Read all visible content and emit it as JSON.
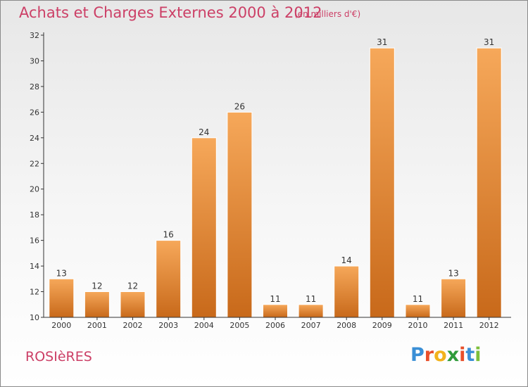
{
  "title": "Achats et Charges Externes 2000 à 2012",
  "subtitle": "(en milliers d'€)",
  "commune": "ROSIèRES",
  "logo_text": "Proxiti",
  "colors": {
    "title": "#cc3f66",
    "bar_top": "#f6a85a",
    "bar_bottom": "#c8691a",
    "axis": "#333333"
  },
  "chart_data": {
    "type": "bar",
    "categories": [
      "2000",
      "2001",
      "2002",
      "2003",
      "2004",
      "2005",
      "2006",
      "2007",
      "2008",
      "2009",
      "2010",
      "2011",
      "2012"
    ],
    "values": [
      13,
      12,
      12,
      16,
      24,
      26,
      11,
      11,
      14,
      31,
      11,
      13,
      31
    ],
    "ylim": [
      10,
      32
    ],
    "yticks": [
      10,
      12,
      14,
      16,
      18,
      20,
      22,
      24,
      26,
      28,
      30,
      32
    ],
    "grid": false,
    "data_labels": true
  }
}
